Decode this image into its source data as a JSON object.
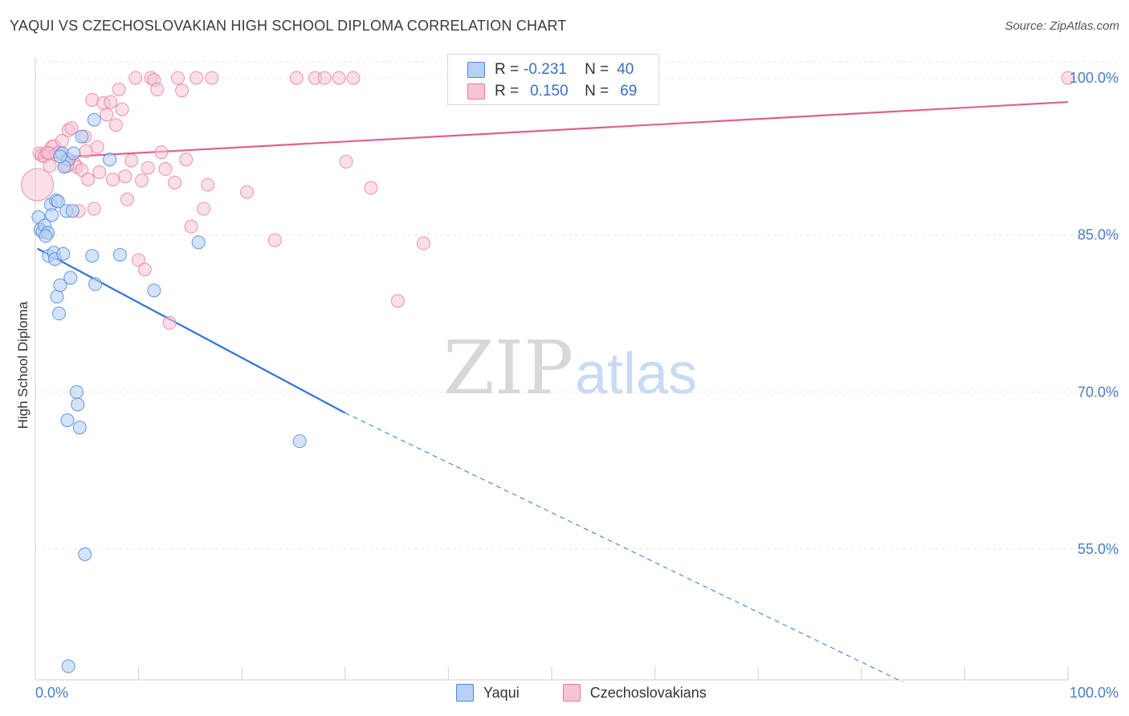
{
  "title": "YAQUI VS CZECHOSLOVAKIAN HIGH SCHOOL DIPLOMA CORRELATION CHART",
  "source": "Source: ZipAtlas.com",
  "legend": {
    "rows": [
      {
        "r_label": "R =",
        "r_value": "-0.231",
        "n_label": "N =",
        "n_value": "40"
      },
      {
        "r_label": "R =",
        "r_value": "0.150",
        "n_label": "N =",
        "n_value": "69"
      }
    ]
  },
  "bottom_legend": {
    "yaqui": "Yaqui",
    "czech": "Czechoslovakians"
  },
  "watermark": {
    "zip": "ZIP",
    "atlas": "atlas"
  },
  "colors": {
    "blue": "#4a86e0",
    "blue_fill": "#b8d0f4",
    "blue_line": "#2f72d6",
    "pink": "#e8789c",
    "pink_fill": "#f6c4d4",
    "pink_line": "#e0608c",
    "tick_text": "#4a7cc9",
    "grid": "#e6e6e6"
  },
  "chart_data": {
    "type": "scatter",
    "title": "YAQUI VS CZECHOSLOVAKIAN HIGH SCHOOL DIPLOMA CORRELATION CHART",
    "xlabel": "",
    "ylabel": "High School Diploma",
    "xlim": [
      0,
      100
    ],
    "ylim": [
      42.5,
      102
    ],
    "x_tick_labels": [
      {
        "value": 0,
        "label": "0.0%"
      },
      {
        "value": 100,
        "label": "100.0%"
      }
    ],
    "y_ticks": [
      {
        "value": 100,
        "label": "100.0%"
      },
      {
        "value": 85,
        "label": "85.0%"
      },
      {
        "value": 70,
        "label": "70.0%"
      },
      {
        "value": 55,
        "label": "55.0%"
      }
    ],
    "series": [
      {
        "name": "Yaqui",
        "color": "blue",
        "points": [
          [
            0.3,
            86.7
          ],
          [
            0.5,
            85.5
          ],
          [
            0.7,
            85.3
          ],
          [
            0.9,
            85.9
          ],
          [
            1.2,
            85.2
          ],
          [
            1.3,
            83.0
          ],
          [
            1.5,
            87.9
          ],
          [
            1.6,
            86.9
          ],
          [
            1.8,
            83.3
          ],
          [
            1.9,
            82.7
          ],
          [
            2.0,
            88.3
          ],
          [
            2.1,
            79.1
          ],
          [
            2.2,
            88.2
          ],
          [
            2.3,
            77.5
          ],
          [
            2.4,
            80.2
          ],
          [
            2.6,
            92.8
          ],
          [
            2.7,
            83.2
          ],
          [
            3.0,
            87.3
          ],
          [
            3.1,
            67.3
          ],
          [
            3.2,
            92.2
          ],
          [
            3.4,
            80.9
          ],
          [
            3.6,
            87.3
          ],
          [
            3.7,
            92.8
          ],
          [
            4.0,
            70.0
          ],
          [
            4.1,
            68.8
          ],
          [
            4.3,
            66.6
          ],
          [
            4.5,
            94.4
          ],
          [
            4.8,
            54.5
          ],
          [
            5.5,
            83.0
          ],
          [
            5.7,
            96.0
          ],
          [
            5.8,
            80.3
          ],
          [
            7.2,
            92.2
          ],
          [
            8.2,
            83.1
          ],
          [
            11.5,
            79.7
          ],
          [
            15.8,
            84.3
          ],
          [
            25.6,
            65.3
          ],
          [
            3.2,
            43.8
          ],
          [
            2.8,
            91.5
          ],
          [
            1.0,
            84.9
          ],
          [
            2.4,
            92.5
          ]
        ]
      },
      {
        "name": "Czechoslovakians",
        "color": "pink",
        "points": [
          [
            0.2,
            89.8
          ],
          [
            0.4,
            92.8
          ],
          [
            0.6,
            92.6
          ],
          [
            0.9,
            92.5
          ],
          [
            1.1,
            92.9
          ],
          [
            1.4,
            91.6
          ],
          [
            1.6,
            93.4
          ],
          [
            1.8,
            93.5
          ],
          [
            2.0,
            92.7
          ],
          [
            2.3,
            92.9
          ],
          [
            2.6,
            94.0
          ],
          [
            2.9,
            91.6
          ],
          [
            3.2,
            95.0
          ],
          [
            3.5,
            95.2
          ],
          [
            3.8,
            91.8
          ],
          [
            4.0,
            91.5
          ],
          [
            4.2,
            87.3
          ],
          [
            4.5,
            91.2
          ],
          [
            4.8,
            94.4
          ],
          [
            5.1,
            90.3
          ],
          [
            5.5,
            97.9
          ],
          [
            5.7,
            87.5
          ],
          [
            6.0,
            93.4
          ],
          [
            6.2,
            91.0
          ],
          [
            6.6,
            97.6
          ],
          [
            6.9,
            96.5
          ],
          [
            7.3,
            97.7
          ],
          [
            7.5,
            90.3
          ],
          [
            7.8,
            95.5
          ],
          [
            8.1,
            98.9
          ],
          [
            8.4,
            97.0
          ],
          [
            8.7,
            90.6
          ],
          [
            8.9,
            88.4
          ],
          [
            9.3,
            92.1
          ],
          [
            9.7,
            100.0
          ],
          [
            10.0,
            82.6
          ],
          [
            10.3,
            90.2
          ],
          [
            10.6,
            81.7
          ],
          [
            10.9,
            91.4
          ],
          [
            11.2,
            100.0
          ],
          [
            11.5,
            99.8
          ],
          [
            11.8,
            98.9
          ],
          [
            12.2,
            92.9
          ],
          [
            12.6,
            91.3
          ],
          [
            13.0,
            76.6
          ],
          [
            13.5,
            90.0
          ],
          [
            13.8,
            100.0
          ],
          [
            14.2,
            98.8
          ],
          [
            14.6,
            92.2
          ],
          [
            15.1,
            85.8
          ],
          [
            15.6,
            100.0
          ],
          [
            16.3,
            87.5
          ],
          [
            16.7,
            89.8
          ],
          [
            17.1,
            100.0
          ],
          [
            20.5,
            89.1
          ],
          [
            23.2,
            84.5
          ],
          [
            25.3,
            100.0
          ],
          [
            27.1,
            100.0
          ],
          [
            28.0,
            100.0
          ],
          [
            29.4,
            100.0
          ],
          [
            30.1,
            92.0
          ],
          [
            30.8,
            100.0
          ],
          [
            32.5,
            89.5
          ],
          [
            35.1,
            78.7
          ],
          [
            37.6,
            84.2
          ],
          [
            100.0,
            100.0
          ],
          [
            3.1,
            91.6
          ],
          [
            4.9,
            93.0
          ],
          [
            1.3,
            92.8
          ]
        ]
      }
    ],
    "trendlines": [
      {
        "series": "Yaqui",
        "solid_from": [
          0.2,
          83.7
        ],
        "solid_to": [
          30.0,
          68.0
        ],
        "dashed_to": [
          84.0,
          42.3
        ]
      },
      {
        "series": "Czechoslovakians",
        "from": [
          0.0,
          92.3
        ],
        "to": [
          100.0,
          97.7
        ]
      }
    ]
  }
}
